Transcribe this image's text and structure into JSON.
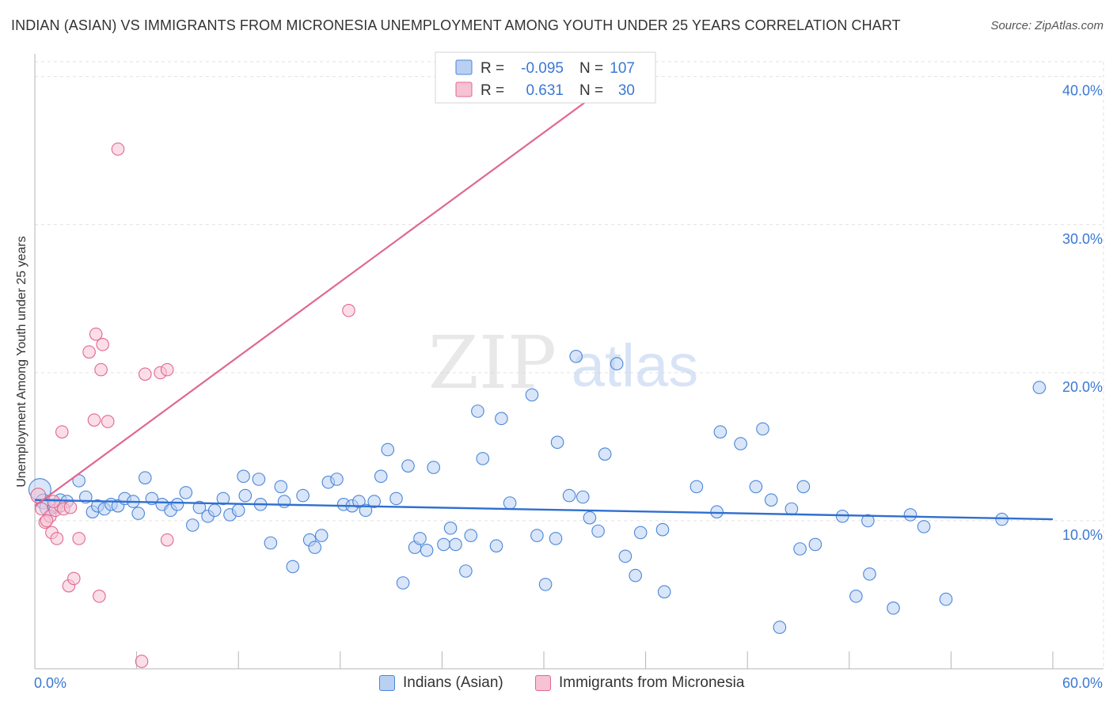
{
  "title": "INDIAN (ASIAN) VS IMMIGRANTS FROM MICRONESIA UNEMPLOYMENT AMONG YOUTH UNDER 25 YEARS CORRELATION CHART",
  "source": "Source: ZipAtlas.com",
  "watermark": {
    "zip": "ZIP",
    "atlas": "atlas"
  },
  "colors": {
    "blue": "#4a86d8",
    "blue_fill": "#b9d0f3",
    "pink": "#e06891",
    "pink_fill": "#f7c2d3",
    "axis_text": "#3a78d4"
  },
  "legend": {
    "rows": [
      {
        "r_label": "R =",
        "r_value": "-0.095",
        "n_label": "N =",
        "n_value": "107"
      },
      {
        "r_label": "R =",
        "r_value": "0.631",
        "n_label": "N =",
        "n_value": "30"
      }
    ]
  },
  "bottom_legend": {
    "blue_label": "Indians (Asian)",
    "pink_label": "Immigrants from Micronesia"
  },
  "chart_data": {
    "type": "scatter",
    "title": "INDIAN (ASIAN) VS IMMIGRANTS FROM MICRONESIA UNEMPLOYMENT AMONG YOUTH UNDER 25 YEARS CORRELATION CHART",
    "xlabel": "",
    "ylabel": "Unemployment Among Youth under 25 years",
    "xlim": [
      0,
      60
    ],
    "ylim": [
      0,
      41
    ],
    "x_tick_labels": {
      "min": "0.0%",
      "max": "60.0%"
    },
    "y_ticks": [
      {
        "value": 10,
        "label": "10.0%"
      },
      {
        "value": 20,
        "label": "20.0%"
      },
      {
        "value": 30,
        "label": "30.0%"
      },
      {
        "value": 40,
        "label": "40.0%"
      }
    ],
    "series": [
      {
        "name": "Indians (Asian)",
        "color": "blue",
        "trend": {
          "x0": 0,
          "y0": 11.4,
          "x1": 60,
          "y1": 10.1
        },
        "points": [
          [
            0.3,
            12.1,
            9
          ],
          [
            0.5,
            11.3,
            6
          ],
          [
            0.8,
            10.9,
            7
          ],
          [
            1.2,
            11.0,
            6
          ],
          [
            1.5,
            11.4,
            5
          ],
          [
            1.9,
            11.3,
            5
          ],
          [
            2.6,
            12.7,
            5
          ],
          [
            3.0,
            11.6,
            5
          ],
          [
            3.4,
            10.6,
            5
          ],
          [
            3.7,
            11.0,
            5
          ],
          [
            4.1,
            10.8,
            5
          ],
          [
            4.5,
            11.1,
            5
          ],
          [
            4.9,
            11.0,
            5
          ],
          [
            5.3,
            11.5,
            5
          ],
          [
            5.8,
            11.3,
            5
          ],
          [
            6.1,
            10.5,
            5
          ],
          [
            6.5,
            12.9,
            5
          ],
          [
            6.9,
            11.5,
            5
          ],
          [
            7.5,
            11.1,
            5
          ],
          [
            8.0,
            10.7,
            5
          ],
          [
            8.4,
            11.1,
            5
          ],
          [
            8.9,
            11.9,
            5
          ],
          [
            9.3,
            9.7,
            5
          ],
          [
            9.7,
            10.9,
            5
          ],
          [
            10.2,
            10.3,
            5
          ],
          [
            10.6,
            10.7,
            5
          ],
          [
            11.1,
            11.5,
            5
          ],
          [
            11.5,
            10.4,
            5
          ],
          [
            12.0,
            10.7,
            5
          ],
          [
            12.4,
            11.7,
            5
          ],
          [
            12.3,
            13.0,
            5
          ],
          [
            13.2,
            12.8,
            5
          ],
          [
            13.3,
            11.1,
            5
          ],
          [
            13.9,
            8.5,
            5
          ],
          [
            14.5,
            12.3,
            5
          ],
          [
            14.7,
            11.3,
            5
          ],
          [
            15.2,
            6.9,
            5
          ],
          [
            15.8,
            11.7,
            5
          ],
          [
            16.2,
            8.7,
            5
          ],
          [
            16.5,
            8.2,
            5
          ],
          [
            16.9,
            9.0,
            5
          ],
          [
            17.3,
            12.6,
            5
          ],
          [
            17.8,
            12.8,
            5
          ],
          [
            18.2,
            11.1,
            5
          ],
          [
            18.7,
            11.0,
            5
          ],
          [
            19.1,
            11.3,
            5
          ],
          [
            19.5,
            10.7,
            5
          ],
          [
            20.0,
            11.3,
            5
          ],
          [
            20.4,
            13.0,
            5
          ],
          [
            20.8,
            14.8,
            5
          ],
          [
            21.3,
            11.5,
            5
          ],
          [
            21.7,
            5.8,
            5
          ],
          [
            22.0,
            13.7,
            5
          ],
          [
            22.4,
            8.2,
            5
          ],
          [
            22.7,
            8.8,
            5
          ],
          [
            23.1,
            8.0,
            5
          ],
          [
            23.5,
            13.6,
            5
          ],
          [
            24.1,
            8.4,
            5
          ],
          [
            24.5,
            9.5,
            5
          ],
          [
            24.8,
            8.4,
            5
          ],
          [
            25.4,
            6.6,
            5
          ],
          [
            25.7,
            9.0,
            5
          ],
          [
            26.1,
            17.4,
            5
          ],
          [
            26.4,
            14.2,
            5
          ],
          [
            27.2,
            8.3,
            5
          ],
          [
            27.5,
            16.9,
            5
          ],
          [
            28.0,
            11.2,
            5
          ],
          [
            29.3,
            18.5,
            5
          ],
          [
            29.6,
            9.0,
            5
          ],
          [
            30.1,
            5.7,
            5
          ],
          [
            30.7,
            8.8,
            5
          ],
          [
            30.8,
            15.3,
            5
          ],
          [
            31.5,
            11.7,
            5
          ],
          [
            31.9,
            21.1,
            5
          ],
          [
            32.3,
            11.6,
            5
          ],
          [
            32.7,
            10.2,
            5
          ],
          [
            33.2,
            9.3,
            5
          ],
          [
            33.6,
            14.5,
            5
          ],
          [
            34.3,
            20.6,
            5
          ],
          [
            34.8,
            7.6,
            5
          ],
          [
            35.4,
            6.3,
            5
          ],
          [
            35.7,
            9.2,
            5
          ],
          [
            37.0,
            9.4,
            5
          ],
          [
            37.1,
            5.2,
            5
          ],
          [
            39.0,
            12.3,
            5
          ],
          [
            40.2,
            10.6,
            5
          ],
          [
            40.4,
            16.0,
            5
          ],
          [
            41.6,
            15.2,
            5
          ],
          [
            42.5,
            12.3,
            5
          ],
          [
            42.9,
            16.2,
            5
          ],
          [
            43.4,
            11.4,
            5
          ],
          [
            43.9,
            2.8,
            5
          ],
          [
            44.6,
            10.8,
            5
          ],
          [
            45.1,
            8.1,
            5
          ],
          [
            45.3,
            12.3,
            5
          ],
          [
            46.0,
            8.4,
            5
          ],
          [
            47.6,
            10.3,
            5
          ],
          [
            48.4,
            4.9,
            5
          ],
          [
            49.1,
            10.0,
            5
          ],
          [
            49.2,
            6.4,
            5
          ],
          [
            50.6,
            4.1,
            5
          ],
          [
            51.6,
            10.4,
            5
          ],
          [
            52.4,
            9.6,
            5
          ],
          [
            53.7,
            4.7,
            5
          ],
          [
            57.0,
            10.1,
            5
          ],
          [
            59.2,
            19.0,
            5
          ]
        ]
      },
      {
        "name": "Immigrants from Micronesia",
        "color": "pink",
        "trend": {
          "x0": 0,
          "y0": 11.0,
          "x1": 34.5,
          "y1": 40.0
        },
        "points": [
          [
            0.2,
            11.7,
            6
          ],
          [
            0.4,
            10.8,
            5
          ],
          [
            0.6,
            9.9,
            5
          ],
          [
            0.9,
            10.3,
            5
          ],
          [
            1.2,
            10.7,
            5
          ],
          [
            1.5,
            11.0,
            5
          ],
          [
            1.7,
            10.8,
            5
          ],
          [
            1.0,
            9.2,
            5
          ],
          [
            1.3,
            8.8,
            5
          ],
          [
            1.6,
            16.0,
            5
          ],
          [
            2.0,
            5.6,
            5
          ],
          [
            2.3,
            6.1,
            5
          ],
          [
            2.6,
            8.8,
            5
          ],
          [
            3.2,
            21.4,
            5
          ],
          [
            3.5,
            16.8,
            5
          ],
          [
            3.6,
            22.6,
            5
          ],
          [
            3.8,
            4.9,
            5
          ],
          [
            3.9,
            20.2,
            5
          ],
          [
            4.0,
            21.9,
            5
          ],
          [
            4.3,
            16.7,
            5
          ],
          [
            4.9,
            35.1,
            5
          ],
          [
            6.3,
            0.5,
            5
          ],
          [
            6.5,
            19.9,
            5
          ],
          [
            7.4,
            20.0,
            5
          ],
          [
            7.8,
            20.2,
            5
          ],
          [
            7.8,
            8.7,
            5
          ],
          [
            18.5,
            24.2,
            5
          ],
          [
            0.7,
            10.0,
            5
          ],
          [
            1.1,
            11.3,
            5
          ],
          [
            2.1,
            10.9,
            5
          ]
        ]
      }
    ]
  }
}
